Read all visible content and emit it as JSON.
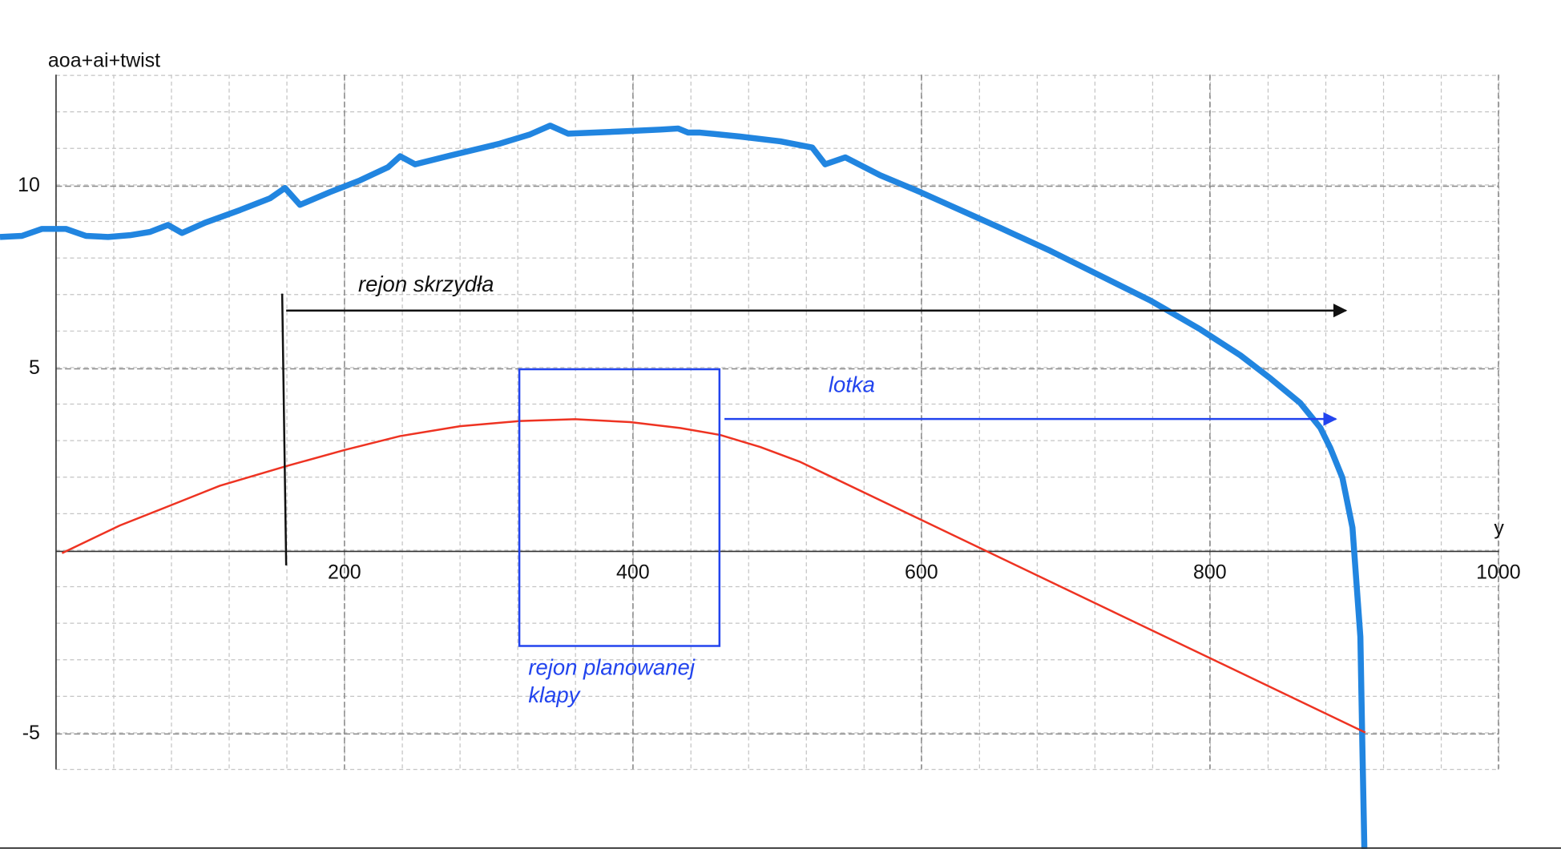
{
  "chart_data": {
    "type": "line",
    "y_label": "aoa+ai+twist",
    "x_label": "y",
    "annotations": [
      "rejon skrzydła",
      "rejon planowanej",
      "klapy",
      "lotka"
    ],
    "xlim": [
      -38.8,
      1043.4
    ],
    "ylim": [
      -8.15,
      15.1
    ],
    "xticks": [
      200,
      400,
      600,
      800,
      1000
    ],
    "yticks": [
      -5,
      5,
      10
    ],
    "grid": true,
    "series": [
      {
        "color": "#2185e0",
        "x": [
          -38.8,
          -23.6,
          -9.7,
          6.9,
          20.8,
          36.1,
          51.3,
          65.2,
          77.7,
          87.4,
          103.3,
          127.6,
          148.4,
          158.8,
          169.2,
          190.0,
          210.8,
          230.2,
          238.6,
          249.0,
          273.2,
          307.9,
          328.7,
          342.6,
          355.1,
          391.1,
          418.9,
          431.3,
          438.3,
          446.6,
          474.3,
          502.1,
          524.3,
          533.3,
          547.2,
          571.4,
          599.2,
          626.9,
          654.6,
          689.3,
          724.0,
          758.7,
          793.3,
          821.1,
          841.9,
          862.7,
          876.6,
          883.5,
          891.8,
          898.8,
          904.3,
          905.7,
          907.1
        ],
        "values": [
          8.61,
          8.64,
          8.83,
          8.83,
          8.64,
          8.61,
          8.66,
          8.75,
          8.94,
          8.72,
          9.0,
          9.35,
          9.67,
          9.95,
          9.49,
          9.84,
          10.16,
          10.52,
          10.82,
          10.6,
          10.84,
          11.17,
          11.42,
          11.66,
          11.44,
          11.5,
          11.55,
          11.58,
          11.47,
          11.47,
          11.36,
          11.23,
          11.06,
          10.6,
          10.79,
          10.3,
          9.84,
          9.35,
          8.86,
          8.23,
          7.55,
          6.87,
          6.08,
          5.37,
          4.74,
          4.06,
          3.38,
          2.83,
          2.02,
          0.65,
          -2.34,
          -5.34,
          -8.15
        ]
      },
      {
        "color": "#ee3322",
        "x": [
          4.2,
          44.4,
          75.6,
          113.7,
          160.2,
          200.4,
          238.6,
          280.2,
          321.8,
          359.9,
          398.1,
          432.7,
          460.5,
          488.2,
          516.0,
          907.8
        ],
        "values": [
          -0.05,
          0.71,
          1.2,
          1.8,
          2.34,
          2.78,
          3.16,
          3.43,
          3.57,
          3.62,
          3.54,
          3.38,
          3.19,
          2.86,
          2.45,
          -4.96
        ]
      }
    ]
  }
}
